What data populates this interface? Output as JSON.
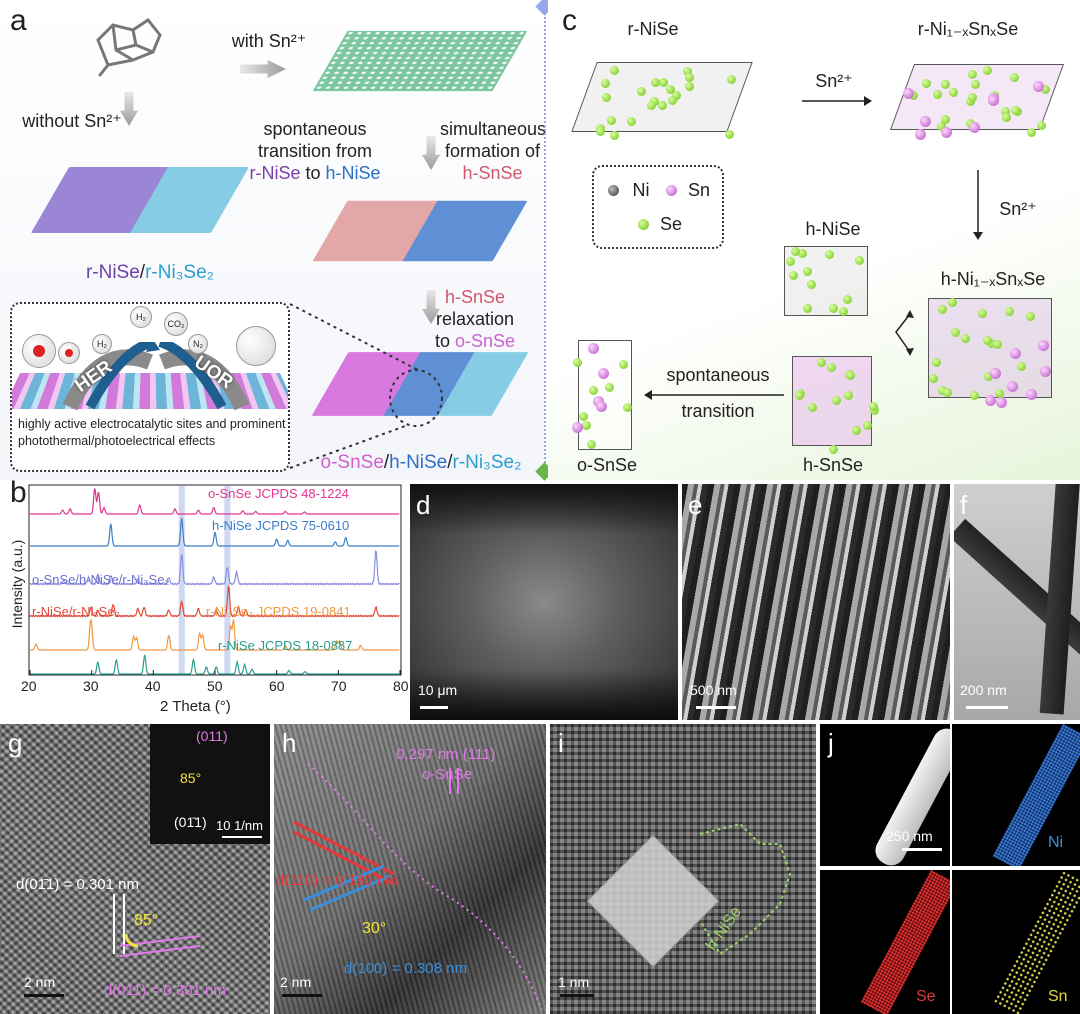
{
  "panels": {
    "a": {
      "letter": "a",
      "with_sn": "with Sn²⁺",
      "without_sn": "without Sn²⁺",
      "transition_line1": "spontaneous",
      "transition_line2": "transition from",
      "transition_from": "r-NiSe",
      "transition_to_word": "to",
      "transition_to": "h-NiSe",
      "simul_line1": "simultaneous",
      "simul_line2": "formation of",
      "simul_product": "h-SnSe",
      "left_product_a": "r-NiSe",
      "left_product_sep": "/",
      "left_product_b": "r-Ni₃Se₂",
      "relax_line1": "h-SnSe",
      "relax_line2": "relaxation",
      "relax_line3_to": "to",
      "relax_line3_product": "o-SnSe",
      "final_a": "o-SnSe",
      "final_sep1": "/",
      "final_b": "h-NiSe",
      "final_sep2": "/",
      "final_c": "r-Ni₃Se₂",
      "inset": {
        "her": "HER",
        "uor": "UOR",
        "h2_a": "H₂",
        "h2_b": "H₂",
        "co2": "CO₂",
        "n2": "N₂",
        "caption": "highly active electrocatalytic sites and prominent photothermal/photoelectrical effects"
      }
    },
    "b": {
      "letter": "b",
      "ylabel": "Intensity (a.u.)",
      "xlabel": "2 Theta (°)",
      "xticks": [
        "20",
        "30",
        "40",
        "50",
        "60",
        "70",
        "80"
      ],
      "labels": {
        "osnse_ref": "o-SnSe JCPDS 48-1224",
        "hnise_ref": "h-NiSe JCPDS 75-0610",
        "composite": "o-SnSe/h-NiSe/r-Ni₃Se₂",
        "rnise_rni3se2": "r-NiSe/r-Ni₃Se₂",
        "rni3se2_ref": "r-Ni₃Se₂ JCPDS 19-0841",
        "rnise_ref": "r-NiSe JCPDS 18-0887"
      }
    },
    "c": {
      "letter": "c",
      "r_nise": "r-NiSe",
      "r_ni_sn_se": "r-Ni₁₋ₓSnₓSe",
      "arrow1": "Sn²⁺",
      "arrow2": "Sn²⁺",
      "h_nise": "h-NiSe",
      "h_ni_sn_se": "h-Ni₁₋ₓSnₓSe",
      "h_snse": "h-SnSe",
      "o_snse": "o-SnSe",
      "spont1": "spontaneous",
      "spont2": "transition",
      "legend": {
        "ni": "Ni",
        "sn": "Sn",
        "se": "Se"
      }
    },
    "d": {
      "letter": "d",
      "scale": "10 μm"
    },
    "e": {
      "letter": "e",
      "scale": "500 nm"
    },
    "f": {
      "letter": "f",
      "scale": "200 nm"
    },
    "g": {
      "letter": "g",
      "scale": "2 nm",
      "fft_plane_top": "(011)",
      "fft_angle": "85°",
      "fft_plane_bottom": "(01̄1)",
      "fft_scale": "10 1/nm",
      "d_white": "d(01̄1) = 0.301 nm",
      "angle": "85°",
      "d_pink": "d(011) = 0.301 nm"
    },
    "h": {
      "letter": "h",
      "scale": "2 nm",
      "osnse_d": "0.297 nm (111)",
      "osnse_label": "o-SnSe",
      "d_red": "d(110) = 0.180 nm",
      "angle": "30°",
      "d_blue": "d(100) = 0.308 nm"
    },
    "i": {
      "letter": "i",
      "scale": "1 nm",
      "phase": "h-NiSe"
    },
    "j": {
      "letter": "j",
      "scale": "250 nm",
      "ni": "Ni",
      "se": "Se",
      "sn": "Sn"
    }
  },
  "chart_data": {
    "type": "line",
    "title": "",
    "xlabel": "2 Theta (°)",
    "ylabel": "Intensity (a.u.)",
    "xlim": [
      20,
      80
    ],
    "series": [
      {
        "name": "o-SnSe JCPDS 48-1224",
        "color": "#e2358f",
        "peaks": [
          [
            25.3,
            0.15
          ],
          [
            26.5,
            0.2
          ],
          [
            30.5,
            1.0
          ],
          [
            31.1,
            0.85
          ],
          [
            32.0,
            0.25
          ],
          [
            37.8,
            0.35
          ],
          [
            43.5,
            0.2
          ],
          [
            47.3,
            0.15
          ],
          [
            49.8,
            0.25
          ],
          [
            54.5,
            0.12
          ],
          [
            56.6,
            0.1
          ],
          [
            61.4,
            0.1
          ],
          [
            64.5,
            0.08
          ]
        ]
      },
      {
        "name": "h-NiSe JCPDS 75-0610",
        "color": "#3a7fc6",
        "peaks": [
          [
            33.1,
            0.8
          ],
          [
            44.6,
            1.0
          ],
          [
            50.0,
            0.5
          ],
          [
            60.0,
            0.25
          ],
          [
            61.8,
            0.2
          ],
          [
            69.5,
            0.15
          ],
          [
            71.2,
            0.3
          ]
        ]
      },
      {
        "name": "o-SnSe/h-NiSe/r-Ni₃Se₂",
        "color": "#8a8ee0",
        "peaks": [
          [
            25.5,
            0.1
          ],
          [
            29.5,
            0.2
          ],
          [
            31.0,
            0.3
          ],
          [
            33.1,
            0.25
          ],
          [
            37.5,
            0.15
          ],
          [
            42.5,
            0.2
          ],
          [
            44.6,
            0.9
          ],
          [
            49.8,
            0.2
          ],
          [
            52.0,
            0.5
          ],
          [
            53.5,
            0.35
          ],
          [
            76.1,
            1.0
          ]
        ]
      },
      {
        "name": "r-NiSe/r-Ni₃Se₂",
        "color": "#e0493a",
        "peaks": [
          [
            29.9,
            0.3
          ],
          [
            31.0,
            0.2
          ],
          [
            33.5,
            0.4
          ],
          [
            37.5,
            0.25
          ],
          [
            38.5,
            0.3
          ],
          [
            42.5,
            0.2
          ],
          [
            44.6,
            0.5
          ],
          [
            47.3,
            0.25
          ],
          [
            50.2,
            0.2
          ],
          [
            52.2,
            1.0
          ],
          [
            53.8,
            0.3
          ],
          [
            55.0,
            0.2
          ],
          [
            76.1,
            0.3
          ]
        ]
      },
      {
        "name": "r-Ni₃Se₂ JCPDS 19-0841",
        "color": "#f09840",
        "peaks": [
          [
            21.0,
            0.2
          ],
          [
            29.8,
            0.7
          ],
          [
            30.0,
            0.5
          ],
          [
            36.8,
            0.45
          ],
          [
            37.3,
            0.4
          ],
          [
            42.5,
            0.5
          ],
          [
            47.5,
            0.55
          ],
          [
            48.0,
            0.5
          ],
          [
            52.5,
            0.8
          ],
          [
            53.0,
            1.0
          ],
          [
            61.4,
            0.15
          ],
          [
            69.7,
            0.3
          ],
          [
            70.2,
            0.3
          ],
          [
            73.6,
            0.15
          ]
        ]
      },
      {
        "name": "r-NiSe JCPDS 18-0887",
        "color": "#2a9e8e",
        "peaks": [
          [
            31.0,
            0.5
          ],
          [
            34.0,
            0.6
          ],
          [
            38.6,
            0.8
          ],
          [
            46.5,
            0.6
          ],
          [
            48.6,
            0.3
          ],
          [
            50.2,
            0.3
          ],
          [
            53.6,
            0.5
          ],
          [
            54.8,
            0.4
          ],
          [
            56.0,
            0.2
          ],
          [
            62.0,
            0.15
          ],
          [
            64.6,
            0.1
          ]
        ]
      }
    ]
  }
}
